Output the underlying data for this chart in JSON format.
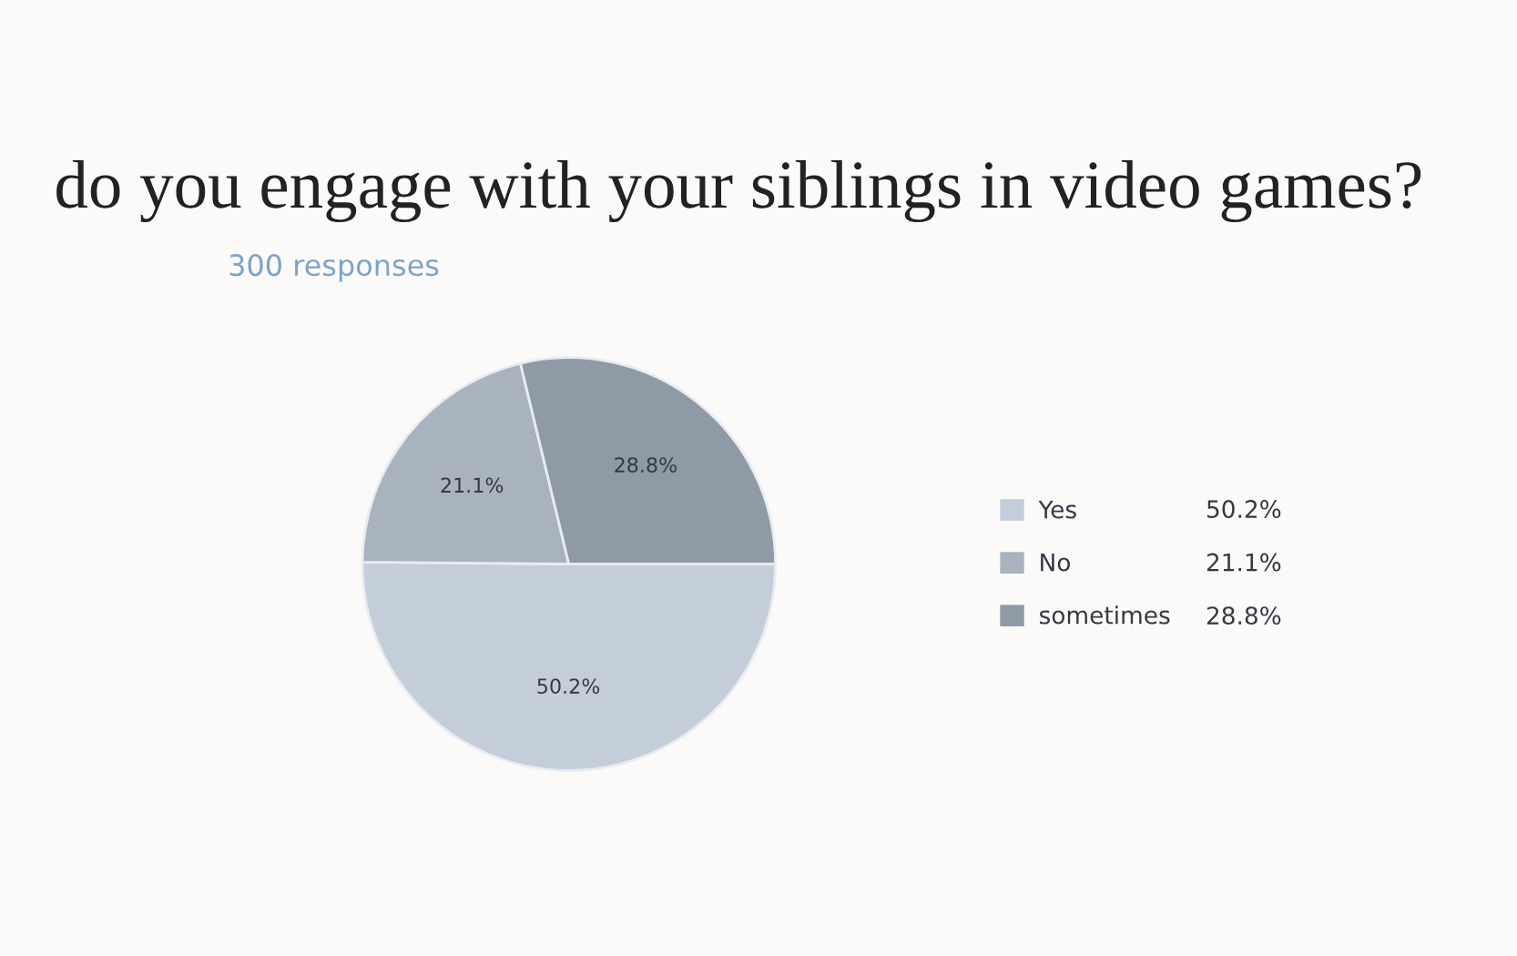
{
  "chart_data": {
    "type": "pie",
    "title": "do you engage with your siblings in video games?",
    "subtitle": "300 responses",
    "categories": [
      "Yes",
      "No",
      "sometimes"
    ],
    "values": [
      50.2,
      21.1,
      28.8
    ],
    "value_labels": [
      "50.2%",
      "21.1%",
      "28.8%"
    ],
    "colors": [
      "#c4cedb",
      "#a9b3bf",
      "#8f9aa7"
    ],
    "legend": "right"
  }
}
